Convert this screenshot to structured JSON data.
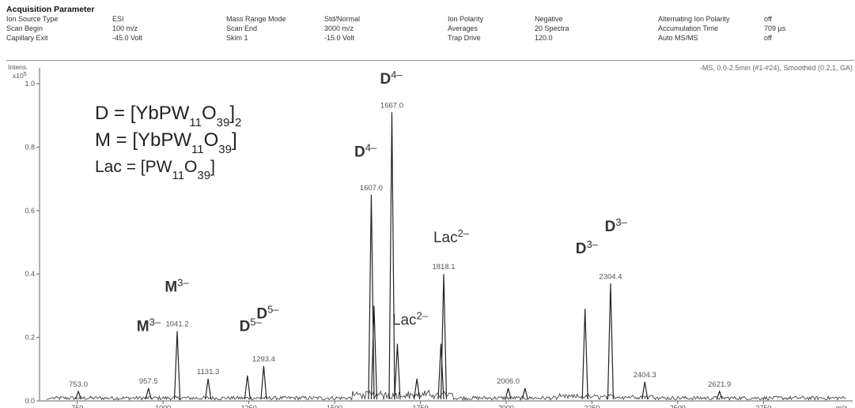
{
  "header": {
    "title": "Acquisition Parameter",
    "rows": [
      [
        "Ion Source Type",
        "ESI",
        "Mass Range Mode",
        "Std/Normal",
        "Ion Polarity",
        "Negative",
        "Alternating Ion Polarity",
        "off"
      ],
      [
        "Scan Begin",
        "100 m/z",
        "Scan End",
        "3000 m/z",
        "Averages",
        "20 Spectra",
        "Accumulation Time",
        "709 µs"
      ],
      [
        "Capillary Exit",
        "-45.0 Volt",
        "Skim 1",
        "-15.0 Volt",
        "Trap Drive",
        "120.0",
        "Auto MS/MS",
        "off"
      ]
    ]
  },
  "chart_data": {
    "type": "line",
    "title": "-MS, 0.0-2.5min (#1-#24), Smoothed (0.2,1, GA)",
    "ylabel": "Intens.",
    "y_multiplier": "x10",
    "y_multiplier_exp": "5",
    "xlabel": "m/z",
    "xlim": [
      640,
      3010
    ],
    "ylim": [
      0,
      1.05
    ],
    "xticks": [
      750,
      1000,
      1250,
      1500,
      1750,
      2000,
      2250,
      2500,
      2750
    ],
    "yticks": [
      0.0,
      0.2,
      0.4,
      0.6,
      0.8,
      1.0
    ],
    "yticklabels": [
      "0.0",
      "0.2",
      "0.4",
      "0.6",
      "0.8",
      "1.0"
    ],
    "peaks": [
      {
        "x": 753.0,
        "y": 0.03,
        "label": "753.0"
      },
      {
        "x": 957.5,
        "y": 0.04,
        "label": "957.5"
      },
      {
        "x": 1041.2,
        "y": 0.22,
        "label": "1041.2"
      },
      {
        "x": 1131.3,
        "y": 0.07,
        "label": "1131.3"
      },
      {
        "x": 1246.0,
        "y": 0.08,
        "label": ""
      },
      {
        "x": 1293.4,
        "y": 0.11,
        "label": "1293.4"
      },
      {
        "x": 1607.0,
        "y": 0.65,
        "label": "1607.0"
      },
      {
        "x": 1615.0,
        "y": 0.3,
        "label": ""
      },
      {
        "x": 1667.0,
        "y": 0.91,
        "label": "1667.0"
      },
      {
        "x": 1683.0,
        "y": 0.18,
        "label": ""
      },
      {
        "x": 1740.0,
        "y": 0.07,
        "label": ""
      },
      {
        "x": 1810.0,
        "y": 0.18,
        "label": ""
      },
      {
        "x": 1818.1,
        "y": 0.4,
        "label": "1818.1"
      },
      {
        "x": 2006.0,
        "y": 0.04,
        "label": "2006.0"
      },
      {
        "x": 2055.0,
        "y": 0.04,
        "label": ""
      },
      {
        "x": 2230.0,
        "y": 0.29,
        "label": ""
      },
      {
        "x": 2304.4,
        "y": 0.37,
        "label": "2304.4"
      },
      {
        "x": 2404.3,
        "y": 0.06,
        "label": "2404.3"
      },
      {
        "x": 2621.9,
        "y": 0.03,
        "label": "2621.9"
      }
    ],
    "annotations": [
      {
        "text": "M",
        "charge": "3–",
        "x": 958,
        "y": 0.22
      },
      {
        "text": "M",
        "charge": "3–",
        "x": 1040,
        "y": 0.345
      },
      {
        "text": "D",
        "charge": "5–",
        "x": 1255,
        "y": 0.22
      },
      {
        "text": "D",
        "charge": "5–",
        "x": 1305,
        "y": 0.26
      },
      {
        "text": "D",
        "charge": "4–",
        "x": 1590,
        "y": 0.77
      },
      {
        "text": "D",
        "charge": "4–",
        "x": 1665,
        "y": 1.0
      },
      {
        "text": "Lac",
        "charge": "2–",
        "x": 1720,
        "y": 0.24
      },
      {
        "text": "Lac",
        "charge": "2–",
        "x": 1840,
        "y": 0.5
      },
      {
        "text": "D",
        "charge": "3–",
        "x": 2235,
        "y": 0.465
      },
      {
        "text": "D",
        "charge": "3–",
        "x": 2320,
        "y": 0.535
      }
    ],
    "legend": [
      {
        "lhs": "D",
        "formula": "[YbPW11O39]2"
      },
      {
        "lhs": "M",
        "formula": "[YbPW11O39]"
      },
      {
        "lhs": "Lac",
        "formula": "[PW11O39]"
      }
    ]
  }
}
